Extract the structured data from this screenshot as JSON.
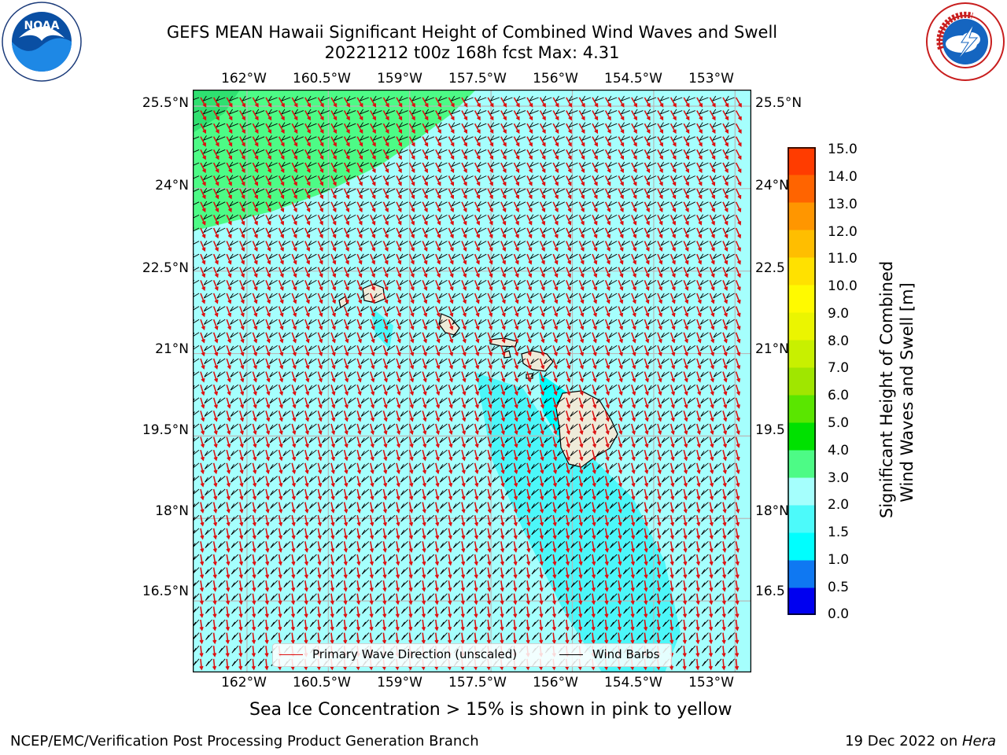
{
  "header": {
    "title_line1": "GEFS MEAN Hawaii Significant Height of Combined Wind Waves and Swell",
    "title_line2": "20221212 t00z 168h fcst   Max: 4.31"
  },
  "logos": {
    "noaa_text": "NOAA",
    "noaa_ring": "NATIONAL OCEANIC AND ATMOSPHERIC ADMINISTRATION · U.S. DEPARTMENT OF COMMERCE",
    "nws_text": "NATIONAL WEATHER SERVICE"
  },
  "map": {
    "lon_labels": [
      "162°W",
      "160.5°W",
      "159°W",
      "157.5°W",
      "156°W",
      "154.5°W",
      "153°W"
    ],
    "lat_labels_left": [
      "25.5°N",
      "24°N",
      "22.5°N",
      "21°N",
      "19.5°N",
      "18°N",
      "16.5°N"
    ],
    "lat_labels_right": [
      "25.5°N",
      "24°N",
      "22.5",
      "21°N",
      "19.5",
      "18°N",
      "16.5"
    ],
    "lon_range": [
      -163.0,
      -152.7
    ],
    "lat_range": [
      15.2,
      25.8
    ],
    "colors": {
      "ocean_main": "#a5fffd",
      "ocean_high": "#4dfb86",
      "ocean_low": "#4cf7f9",
      "land": "#eeebd9",
      "grid": "#b8b8b8",
      "wave_arrow": "#dd1111",
      "wind_barb": "#000000"
    }
  },
  "legend": {
    "wave_label": "Primary Wave Direction (unscaled)",
    "barb_label": "Wind Barbs"
  },
  "colorbar": {
    "label_line1": "Significant Height of Combined",
    "label_line2": "Wind Waves and Swell [m]",
    "ticks": [
      "15.0",
      "14.0",
      "13.0",
      "12.0",
      "11.0",
      "10.0",
      "9.0",
      "8.0",
      "7.0",
      "6.0",
      "5.0",
      "4.0",
      "3.0",
      "2.0",
      "1.5",
      "1.0",
      "0.5",
      "0.0"
    ],
    "colors": [
      "#0000f0",
      "#0f78f2",
      "#00fefe",
      "#4cfafa",
      "#a5fffd",
      "#4dfb86",
      "#00e100",
      "#5ae600",
      "#a0e600",
      "#c8f000",
      "#ebf500",
      "#fffa00",
      "#ffe100",
      "#ffbe00",
      "#ff9600",
      "#ff6400",
      "#ff3c00",
      "#ff0000"
    ]
  },
  "note": "Sea Ice Concentration > 15% is shown in pink to yellow",
  "footer": {
    "left": "NCEP/EMC/Verification Post Processing Product Generation Branch",
    "date": "19 Dec 2022 on ",
    "machine": "Hera"
  }
}
